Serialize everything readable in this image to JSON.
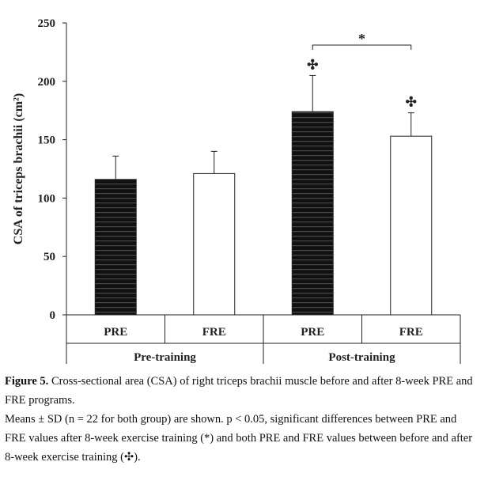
{
  "chart_data": {
    "type": "bar",
    "title": "",
    "xlabel": "",
    "ylabel": "CSA of triceps brachii (cm²)",
    "ylim": [
      0,
      250
    ],
    "yticks": [
      0,
      50,
      100,
      150,
      200,
      250
    ],
    "grid": false,
    "legend": "none",
    "bars": [
      {
        "category": "PRE",
        "group": "Pre-training",
        "value": 116,
        "sd": 20,
        "pattern": "dark-striped",
        "marker": ""
      },
      {
        "category": "FRE",
        "group": "Pre-training",
        "value": 121,
        "sd": 19,
        "pattern": "white",
        "marker": ""
      },
      {
        "category": "PRE",
        "group": "Post-training",
        "value": 174,
        "sd": 31,
        "pattern": "dark-striped",
        "marker": "✣"
      },
      {
        "category": "FRE",
        "group": "Post-training",
        "value": 153,
        "sd": 20,
        "pattern": "white",
        "marker": "✣"
      }
    ],
    "groups": [
      "Pre-training",
      "Post-training"
    ],
    "significance": [
      {
        "between": [
          2,
          3
        ],
        "label": "*"
      }
    ]
  },
  "caption": {
    "figure_label": "Figure 5.",
    "line1": " Cross-sectional area (CSA) of right triceps brachii muscle before and after 8-week PRE and FRE programs.",
    "line2": "Means ± SD (n = 22 for both group) are shown. p < 0.05, significant differences between PRE and FRE values after 8-week exercise training (*) and both PRE and FRE values between before and after 8-week exercise training (✣)."
  }
}
